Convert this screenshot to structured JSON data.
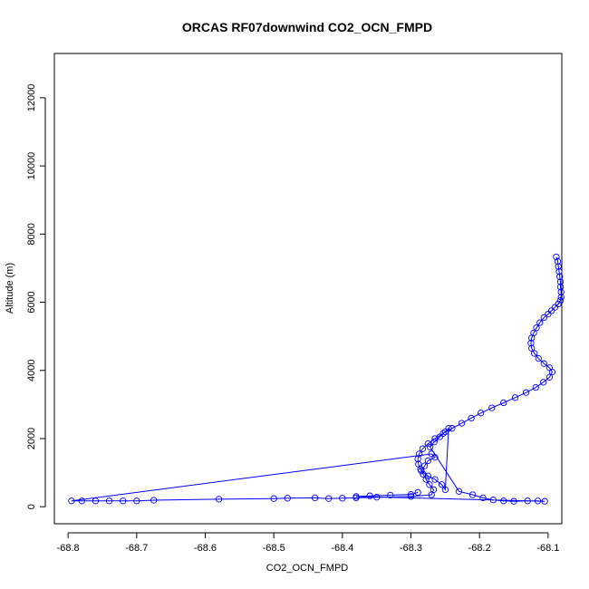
{
  "chart_data": {
    "type": "scatter",
    "title": "ORCAS RF07downwind CO2_OCN_FMPD",
    "xlabel": "CO2_OCN_FMPD",
    "ylabel": "Altitude (m)",
    "xlim": [
      -68.82,
      -68.08
    ],
    "ylim": [
      -500,
      13300
    ],
    "xticks": [
      -68.8,
      -68.7,
      -68.6,
      -68.5,
      -68.4,
      -68.3,
      -68.2,
      -68.1
    ],
    "yticks": [
      0,
      2000,
      4000,
      6000,
      8000,
      10000,
      12000
    ],
    "xtick_labels": [
      "-68.8",
      "-68.7",
      "-68.6",
      "-68.5",
      "-68.4",
      "-68.3",
      "-68.2",
      "-68.1"
    ],
    "ytick_labels": [
      "0",
      "2000",
      "4000",
      "6000",
      "8000",
      "10000",
      "12000"
    ],
    "grid": false,
    "series": [
      {
        "marker": "open-circle",
        "line": true,
        "color": "#0000ff",
        "points": [
          [
            -68.088,
            7330
          ],
          [
            -68.086,
            7200
          ],
          [
            -68.085,
            7050
          ],
          [
            -68.084,
            6900
          ],
          [
            -68.083,
            6750
          ],
          [
            -68.082,
            6600
          ],
          [
            -68.082,
            6450
          ],
          [
            -68.081,
            6300
          ],
          [
            -68.081,
            6150
          ],
          [
            -68.082,
            6050
          ],
          [
            -68.085,
            5950
          ],
          [
            -68.09,
            5850
          ],
          [
            -68.095,
            5750
          ],
          [
            -68.1,
            5650
          ],
          [
            -68.106,
            5550
          ],
          [
            -68.112,
            5400
          ],
          [
            -68.117,
            5250
          ],
          [
            -68.121,
            5100
          ],
          [
            -68.124,
            4950
          ],
          [
            -68.125,
            4800
          ],
          [
            -68.124,
            4650
          ],
          [
            -68.12,
            4500
          ],
          [
            -68.114,
            4350
          ],
          [
            -68.106,
            4200
          ],
          [
            -68.098,
            4080
          ],
          [
            -68.094,
            3950
          ],
          [
            -68.098,
            3800
          ],
          [
            -68.107,
            3650
          ],
          [
            -68.118,
            3500
          ],
          [
            -68.132,
            3350
          ],
          [
            -68.148,
            3200
          ],
          [
            -68.165,
            3050
          ],
          [
            -68.182,
            2900
          ],
          [
            -68.198,
            2750
          ],
          [
            -68.212,
            2600
          ],
          [
            -68.226,
            2450
          ],
          [
            -68.24,
            2300
          ],
          [
            -68.253,
            2150
          ],
          [
            -68.265,
            2000
          ],
          [
            -68.275,
            1850
          ],
          [
            -68.283,
            1700
          ],
          [
            -68.288,
            1550
          ],
          [
            -68.29,
            1400
          ],
          [
            -68.289,
            1250
          ],
          [
            -68.286,
            1100
          ],
          [
            -68.282,
            950
          ],
          [
            -68.278,
            800
          ],
          [
            -68.273,
            650
          ],
          [
            -68.267,
            500
          ],
          [
            -68.27,
            350
          ],
          [
            -68.3,
            300
          ],
          [
            -68.35,
            280
          ],
          [
            -68.38,
            260
          ],
          [
            -68.4,
            250
          ],
          [
            -68.42,
            240
          ],
          [
            -68.44,
            260
          ],
          [
            -68.48,
            250
          ],
          [
            -68.5,
            240
          ],
          [
            -68.58,
            220
          ],
          [
            -68.675,
            190
          ],
          [
            -68.7,
            170
          ],
          [
            -68.72,
            170
          ],
          [
            -68.74,
            170
          ],
          [
            -68.76,
            170
          ],
          [
            -68.78,
            170
          ],
          [
            -68.795,
            170
          ],
          [
            -68.27,
            1550
          ],
          [
            -68.265,
            1450
          ],
          [
            -68.275,
            1350
          ],
          [
            -68.28,
            1200
          ],
          [
            -68.285,
            1050
          ],
          [
            -68.275,
            900
          ],
          [
            -68.265,
            800
          ],
          [
            -68.255,
            650
          ],
          [
            -68.25,
            500
          ],
          [
            -68.245,
            2300
          ],
          [
            -68.25,
            2200
          ],
          [
            -68.258,
            2050
          ],
          [
            -68.266,
            1900
          ],
          [
            -68.272,
            1750
          ],
          [
            -68.23,
            450
          ],
          [
            -68.21,
            350
          ],
          [
            -68.195,
            260
          ],
          [
            -68.18,
            200
          ],
          [
            -68.165,
            170
          ],
          [
            -68.15,
            160
          ],
          [
            -68.13,
            170
          ],
          [
            -68.115,
            170
          ],
          [
            -68.105,
            160
          ],
          [
            -68.38,
            300
          ],
          [
            -68.36,
            320
          ],
          [
            -68.33,
            340
          ],
          [
            -68.3,
            360
          ],
          [
            -68.29,
            420
          ]
        ]
      }
    ]
  }
}
